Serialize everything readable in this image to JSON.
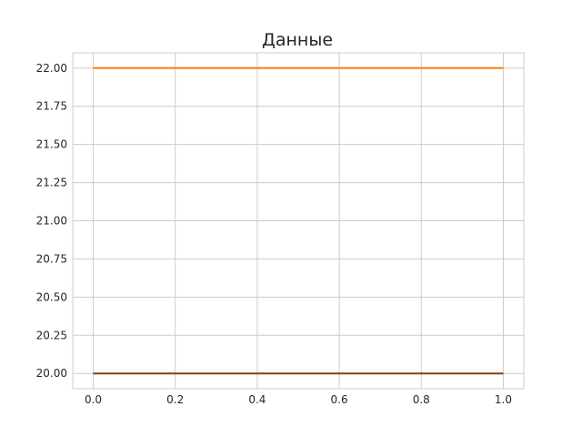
{
  "chart_data": {
    "type": "line",
    "title": "Данные",
    "xlabel": "",
    "ylabel": "",
    "xlim": [
      -0.05,
      1.05
    ],
    "ylim": [
      19.9,
      22.1
    ],
    "grid": true,
    "x_ticks": [
      "0.0",
      "0.2",
      "0.4",
      "0.6",
      "0.8",
      "1.0"
    ],
    "y_ticks": [
      "20.00",
      "20.25",
      "20.50",
      "20.75",
      "21.00",
      "21.25",
      "21.50",
      "21.75",
      "22.00"
    ],
    "series": [
      {
        "color": "#ff7f0e",
        "x": [
          0,
          1
        ],
        "y": [
          22,
          22
        ]
      },
      {
        "color": "#8c3a0a",
        "x": [
          0,
          1
        ],
        "y": [
          20,
          20
        ]
      }
    ]
  }
}
